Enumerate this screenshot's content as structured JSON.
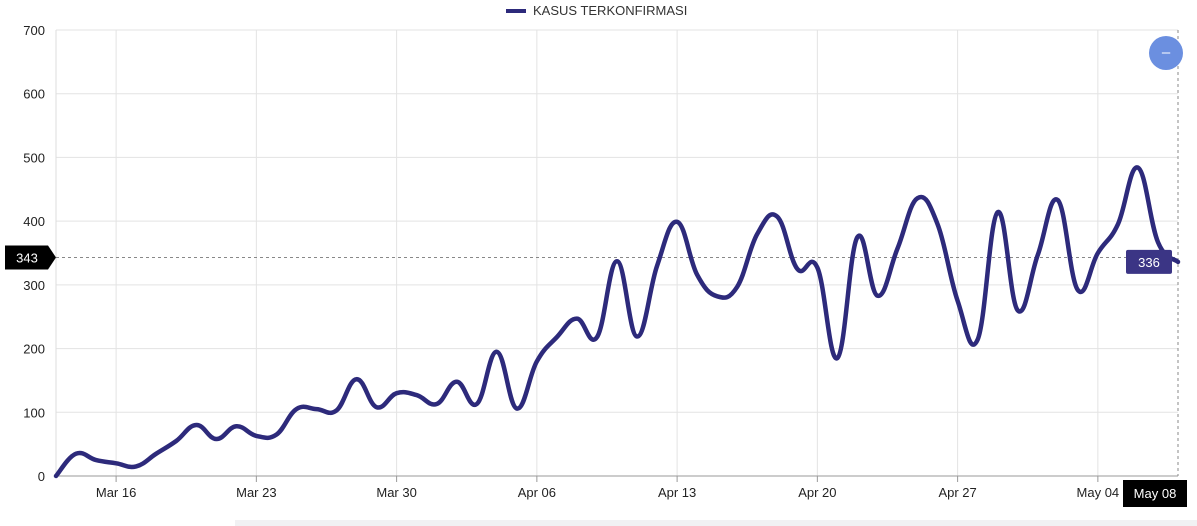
{
  "chart_data": {
    "type": "line",
    "legend": "KASUS TERKONFIRMASI",
    "legend_position": "top-center",
    "x_start": "2020-03-13",
    "x_end": "2020-05-08",
    "xticks": [
      {
        "date": "2020-03-16",
        "label": "Mar 16"
      },
      {
        "date": "2020-03-23",
        "label": "Mar 23"
      },
      {
        "date": "2020-03-30",
        "label": "Mar 30"
      },
      {
        "date": "2020-04-06",
        "label": "Apr 06"
      },
      {
        "date": "2020-04-13",
        "label": "Apr 13"
      },
      {
        "date": "2020-04-20",
        "label": "Apr 20"
      },
      {
        "date": "2020-04-27",
        "label": "Apr 27"
      },
      {
        "date": "2020-05-04",
        "label": "May 04"
      }
    ],
    "yticks": [
      0,
      100,
      200,
      300,
      400,
      500,
      600,
      700
    ],
    "ylim": [
      0,
      700
    ],
    "grid": true,
    "series": [
      {
        "name": "KASUS TERKONFIRMASI",
        "color": "#2d2a7b",
        "points": [
          [
            "2020-03-13",
            0
          ],
          [
            "2020-03-14",
            35
          ],
          [
            "2020-03-15",
            25
          ],
          [
            "2020-03-16",
            20
          ],
          [
            "2020-03-17",
            15
          ],
          [
            "2020-03-18",
            35
          ],
          [
            "2020-03-19",
            55
          ],
          [
            "2020-03-20",
            80
          ],
          [
            "2020-03-21",
            58
          ],
          [
            "2020-03-22",
            78
          ],
          [
            "2020-03-23",
            63
          ],
          [
            "2020-03-24",
            65
          ],
          [
            "2020-03-25",
            105
          ],
          [
            "2020-03-26",
            105
          ],
          [
            "2020-03-27",
            103
          ],
          [
            "2020-03-28",
            152
          ],
          [
            "2020-03-29",
            108
          ],
          [
            "2020-03-30",
            130
          ],
          [
            "2020-03-31",
            127
          ],
          [
            "2020-04-01",
            113
          ],
          [
            "2020-04-02",
            148
          ],
          [
            "2020-04-03",
            113
          ],
          [
            "2020-04-04",
            195
          ],
          [
            "2020-04-05",
            106
          ],
          [
            "2020-04-06",
            180
          ],
          [
            "2020-04-07",
            218
          ],
          [
            "2020-04-08",
            247
          ],
          [
            "2020-04-09",
            218
          ],
          [
            "2020-04-10",
            337
          ],
          [
            "2020-04-11",
            219
          ],
          [
            "2020-04-12",
            330
          ],
          [
            "2020-04-13",
            399
          ],
          [
            "2020-04-14",
            316
          ],
          [
            "2020-04-15",
            282
          ],
          [
            "2020-04-16",
            297
          ],
          [
            "2020-04-17",
            380
          ],
          [
            "2020-04-18",
            407
          ],
          [
            "2020-04-19",
            325
          ],
          [
            "2020-04-20",
            327
          ],
          [
            "2020-04-21",
            185
          ],
          [
            "2020-04-22",
            375
          ],
          [
            "2020-04-23",
            283
          ],
          [
            "2020-04-24",
            357
          ],
          [
            "2020-04-25",
            436
          ],
          [
            "2020-04-26",
            395
          ],
          [
            "2020-04-27",
            275
          ],
          [
            "2020-04-28",
            214
          ],
          [
            "2020-04-29",
            414
          ],
          [
            "2020-04-30",
            260
          ],
          [
            "2020-05-01",
            347
          ],
          [
            "2020-05-02",
            433
          ],
          [
            "2020-05-03",
            292
          ],
          [
            "2020-05-04",
            350
          ],
          [
            "2020-05-05",
            395
          ],
          [
            "2020-05-06",
            484
          ],
          [
            "2020-05-07",
            367
          ],
          [
            "2020-05-08",
            336
          ]
        ]
      }
    ],
    "crosshair": {
      "y_label": "343",
      "value_label": "336",
      "x_label": "May 08"
    }
  },
  "zoom_button": {
    "label": "–",
    "color": "#6b8fe0"
  },
  "colors": {
    "line": "#2d2a7b",
    "grid": "#e3e3e3",
    "tooltip": "#3b3585",
    "label_bg": "#000000"
  }
}
